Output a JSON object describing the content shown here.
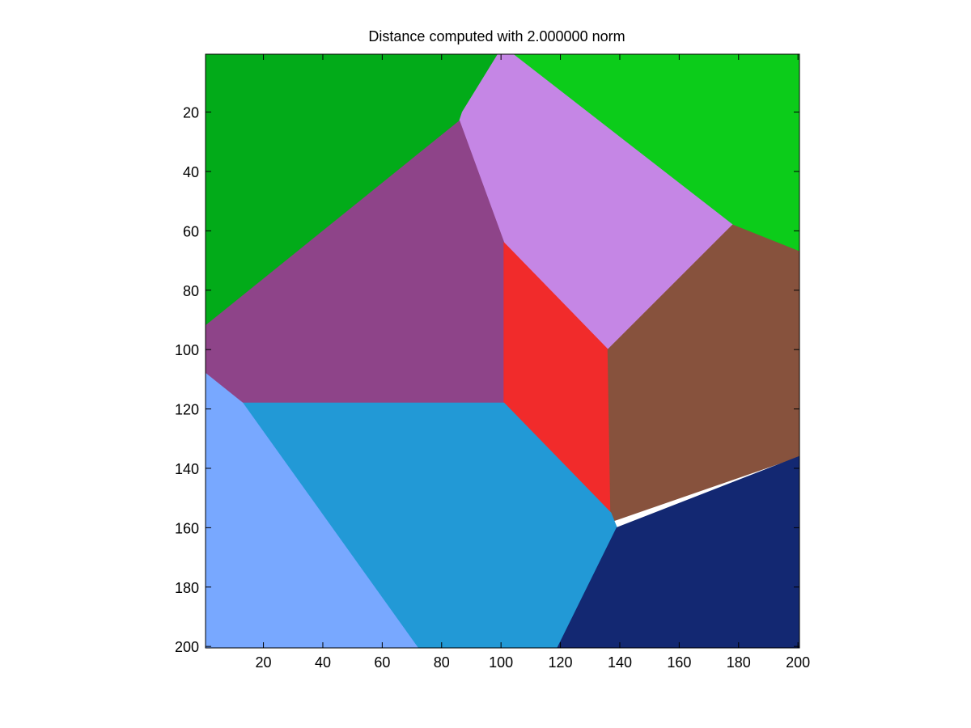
{
  "chart_data": {
    "type": "heatmap",
    "title": "Distance computed with 2.000000 norm",
    "xlabel": "",
    "ylabel": "",
    "xlim": [
      0.5,
      200.5
    ],
    "ylim": [
      0.5,
      200.5
    ],
    "y_reversed": true,
    "grid": false,
    "xticks": [
      20,
      40,
      60,
      80,
      100,
      120,
      140,
      160,
      180,
      200
    ],
    "yticks": [
      20,
      40,
      60,
      80,
      100,
      120,
      140,
      160,
      180,
      200
    ],
    "regions": [
      {
        "color": "#02ab19",
        "vertices": [
          [
            0.5,
            0.5
          ],
          [
            99,
            0.5
          ],
          [
            87,
            20
          ],
          [
            86,
            23
          ],
          [
            0.5,
            92
          ]
        ]
      },
      {
        "color": "#0ccc1a",
        "vertices": [
          [
            104,
            0.5
          ],
          [
            200.5,
            0.5
          ],
          [
            200.5,
            67
          ],
          [
            178,
            58
          ]
        ]
      },
      {
        "color": "#c586e5",
        "vertices": [
          [
            99,
            0.5
          ],
          [
            104,
            0.5
          ],
          [
            178,
            58
          ],
          [
            136,
            100
          ],
          [
            101,
            64
          ],
          [
            86,
            23
          ],
          [
            87,
            20
          ]
        ]
      },
      {
        "color": "#8e4489",
        "vertices": [
          [
            0.5,
            92
          ],
          [
            86,
            23
          ],
          [
            101,
            64
          ],
          [
            101,
            118
          ],
          [
            13,
            118
          ],
          [
            0.5,
            108
          ]
        ]
      },
      {
        "color": "#f12b2b",
        "vertices": [
          [
            101,
            64
          ],
          [
            136,
            100
          ],
          [
            137,
            155
          ],
          [
            101,
            118
          ]
        ]
      },
      {
        "color": "#87523d",
        "vertices": [
          [
            136,
            100
          ],
          [
            178,
            58
          ],
          [
            200.5,
            67
          ],
          [
            200.5,
            136
          ],
          [
            137,
            158
          ]
        ]
      },
      {
        "color": "#2299d6",
        "vertices": [
          [
            13,
            118
          ],
          [
            101,
            118
          ],
          [
            137,
            155
          ],
          [
            139,
            160
          ],
          [
            119,
            200.5
          ],
          [
            72,
            200.5
          ]
        ]
      },
      {
        "color": "#78a8ff",
        "vertices": [
          [
            0.5,
            108
          ],
          [
            13,
            118
          ],
          [
            72,
            200.5
          ],
          [
            0.5,
            200.5
          ]
        ]
      },
      {
        "color": "#132872",
        "vertices": [
          [
            139,
            160
          ],
          [
            200.5,
            136
          ],
          [
            200.5,
            200.5
          ],
          [
            119,
            200.5
          ]
        ]
      }
    ]
  }
}
